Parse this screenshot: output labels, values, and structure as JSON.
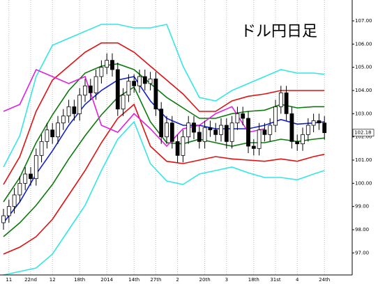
{
  "chart_data": {
    "type": "candlestick",
    "title": "ドル円日足",
    "x": [
      0,
      1,
      2,
      3,
      4,
      5,
      6,
      7,
      8,
      9,
      10,
      11,
      12,
      13,
      14,
      15,
      16,
      17,
      18,
      19,
      20,
      21,
      22,
      23,
      24,
      25,
      26,
      27,
      28,
      29,
      30,
      31,
      32,
      33,
      34,
      35,
      36,
      37,
      38,
      39,
      40,
      41,
      42,
      43,
      44,
      45,
      46,
      47,
      48,
      49,
      50,
      51,
      52,
      53,
      54,
      55,
      56,
      57,
      58,
      59
    ],
    "open": [
      98.3,
      98.6,
      99.0,
      99.5,
      100.0,
      100.4,
      100.2,
      101.2,
      101.8,
      102.3,
      102.0,
      102.6,
      102.9,
      103.3,
      103.0,
      103.8,
      104.2,
      103.9,
      104.6,
      105.0,
      105.3,
      104.9,
      103.2,
      103.8,
      104.4,
      104.2,
      104.6,
      104.3,
      104.5,
      103.2,
      102.0,
      102.6,
      101.8,
      101.2,
      102.0,
      102.6,
      102.2,
      101.8,
      102.4,
      102.3,
      102.1,
      102.5,
      101.8,
      102.6,
      103.0,
      102.8,
      101.6,
      101.5,
      102.3,
      102.1,
      102.5,
      103.3,
      103.9,
      103.0,
      101.8,
      101.7,
      102.1,
      102.5,
      102.7,
      102.6
    ],
    "high": [
      98.9,
      99.3,
      99.8,
      100.3,
      100.7,
      100.7,
      101.5,
      102.1,
      102.6,
      102.6,
      102.9,
      103.2,
      103.6,
      103.6,
      104.1,
      104.5,
      104.5,
      104.9,
      105.3,
      105.6,
      105.6,
      105.2,
      104.1,
      104.7,
      104.7,
      104.9,
      104.9,
      104.8,
      104.8,
      103.5,
      102.9,
      102.9,
      102.1,
      102.3,
      102.9,
      102.9,
      102.5,
      102.7,
      102.7,
      102.6,
      102.8,
      102.8,
      102.9,
      103.3,
      103.3,
      103.1,
      101.9,
      102.6,
      102.6,
      102.8,
      103.6,
      104.2,
      104.2,
      103.3,
      102.1,
      102.4,
      102.8,
      103.0,
      103.0,
      102.9
    ],
    "low": [
      98.0,
      98.3,
      98.7,
      99.2,
      99.7,
      99.9,
      99.9,
      100.9,
      101.5,
      101.7,
      101.7,
      102.3,
      102.6,
      102.7,
      102.7,
      103.5,
      103.6,
      103.6,
      104.3,
      104.7,
      104.6,
      102.9,
      102.9,
      103.5,
      103.9,
      103.9,
      104.0,
      104.0,
      102.9,
      101.7,
      101.7,
      101.5,
      100.9,
      100.9,
      101.7,
      101.9,
      101.5,
      101.5,
      102.0,
      101.8,
      101.8,
      101.5,
      101.5,
      102.3,
      102.5,
      101.3,
      101.2,
      101.2,
      101.8,
      101.8,
      102.2,
      103.0,
      102.7,
      101.5,
      101.4,
      101.4,
      101.8,
      102.2,
      102.3,
      101.88
    ],
    "close": [
      98.6,
      99.0,
      99.5,
      100.0,
      100.4,
      100.2,
      101.2,
      101.8,
      102.3,
      102.0,
      102.6,
      102.9,
      103.3,
      103.0,
      103.8,
      104.2,
      103.9,
      104.6,
      105.0,
      105.3,
      104.9,
      103.2,
      103.8,
      104.4,
      104.2,
      104.6,
      104.3,
      104.5,
      103.2,
      102.0,
      102.6,
      101.8,
      101.2,
      102.0,
      102.6,
      102.2,
      101.8,
      102.4,
      102.3,
      102.1,
      102.5,
      101.8,
      102.6,
      103.0,
      102.8,
      101.6,
      101.5,
      102.3,
      102.1,
      102.5,
      103.3,
      103.9,
      103.0,
      101.8,
      101.7,
      102.1,
      102.5,
      102.7,
      102.6,
      102.18
    ],
    "up_color": "#ffffff",
    "down_color": "#000000",
    "line_x": [
      0,
      3,
      6,
      9,
      12,
      15,
      18,
      21,
      24,
      27,
      30,
      33,
      36,
      39,
      42,
      45,
      48,
      51,
      54,
      57,
      59
    ],
    "lines": [
      {
        "color": "#33e6e6",
        "values": [
          100.7,
          102.05,
          104.6,
          105.95,
          106.25,
          106.55,
          106.85,
          106.85,
          106.7,
          106.7,
          106.85,
          105.05,
          103.7,
          103.55,
          104.0,
          104.3,
          104.6,
          104.9,
          104.75,
          104.75,
          104.7
        ]
      },
      {
        "color": "#33e6e6",
        "values": [
          96.05,
          96.2,
          96.35,
          96.95,
          98.0,
          99.05,
          100.55,
          101.9,
          102.65,
          100.85,
          100.1,
          99.95,
          100.4,
          100.55,
          100.7,
          100.45,
          100.25,
          100.25,
          100.15,
          100.4,
          100.55
        ]
      },
      {
        "color": "#e01010",
        "values": [
          99.95,
          101.15,
          103.1,
          104.45,
          105.05,
          105.65,
          106.05,
          106.05,
          105.65,
          105.05,
          104.45,
          103.85,
          103.1,
          103.1,
          103.55,
          103.75,
          103.85,
          104.0,
          104.0,
          104.0,
          104.0
        ]
      },
      {
        "color": "#e01010",
        "values": [
          96.95,
          97.25,
          97.7,
          98.45,
          99.5,
          100.55,
          101.75,
          102.8,
          103.4,
          101.6,
          100.95,
          100.85,
          101.0,
          101.15,
          101.05,
          101.0,
          100.95,
          101.05,
          100.95,
          101.15,
          101.25
        ]
      },
      {
        "color": "#0a7a0a",
        "values": [
          99.2,
          100.25,
          101.75,
          102.95,
          104.0,
          104.75,
          105.05,
          105.15,
          104.9,
          104.3,
          103.7,
          103.25,
          102.8,
          102.8,
          103.0,
          103.1,
          103.15,
          103.4,
          103.25,
          103.3,
          103.3
        ]
      },
      {
        "color": "#0a7a0a",
        "values": [
          97.7,
          98.3,
          99.05,
          99.95,
          101.05,
          102.05,
          102.95,
          103.7,
          104.15,
          102.65,
          101.75,
          101.7,
          101.9,
          101.75,
          101.6,
          101.75,
          101.75,
          101.9,
          101.8,
          101.9,
          101.95
        ]
      },
      {
        "color": "#1020d0",
        "values": [
          98.3,
          99.2,
          100.4,
          101.4,
          102.5,
          103.4,
          104.0,
          104.45,
          104.6,
          103.55,
          102.8,
          102.5,
          102.5,
          102.35,
          102.35,
          102.35,
          102.5,
          102.75,
          102.55,
          102.6,
          102.65
        ]
      },
      {
        "color": "#e020e0",
        "values": [
          103.1,
          103.4,
          104.9,
          104.6,
          104.3,
          104.6,
          102.5,
          102.2,
          103.0,
          102.35,
          101.6,
          102.35,
          102.5,
          103.0,
          103.3,
          102.2,
          102.35,
          null,
          null,
          null,
          null
        ]
      }
    ],
    "xlim": [
      -0.64,
      64.1
    ],
    "ylim": [
      96.05,
      107.9
    ],
    "xticks": [
      {
        "value": 1,
        "label": "11"
      },
      {
        "value": 5,
        "label": "22nd"
      },
      {
        "value": 9,
        "label": "12"
      },
      {
        "value": 14,
        "label": "18th"
      },
      {
        "value": 19,
        "label": "2014"
      },
      {
        "value": 24,
        "label": "14th"
      },
      {
        "value": 28,
        "label": "27th"
      },
      {
        "value": 32,
        "label": "2"
      },
      {
        "value": 37,
        "label": "20th"
      },
      {
        "value": 41,
        "label": "3"
      },
      {
        "value": 46,
        "label": "18th"
      },
      {
        "value": 50,
        "label": "31st"
      },
      {
        "value": 54,
        "label": "4"
      },
      {
        "value": 59,
        "label": "24th"
      }
    ],
    "yticks": [
      {
        "value": 97,
        "label": "97.00"
      },
      {
        "value": 98,
        "label": "98.00"
      },
      {
        "value": 99,
        "label": "99.00"
      },
      {
        "value": 100,
        "label": "100.00"
      },
      {
        "value": 101,
        "label": "101.00"
      },
      {
        "value": 102,
        "label": "102.00"
      },
      {
        "value": 103,
        "label": "103.00"
      },
      {
        "value": 104,
        "label": "104.00"
      },
      {
        "value": 105,
        "label": "105.00"
      },
      {
        "value": 106,
        "label": "106.00"
      },
      {
        "value": 107,
        "label": "107.00"
      }
    ],
    "grid": true
  }
}
